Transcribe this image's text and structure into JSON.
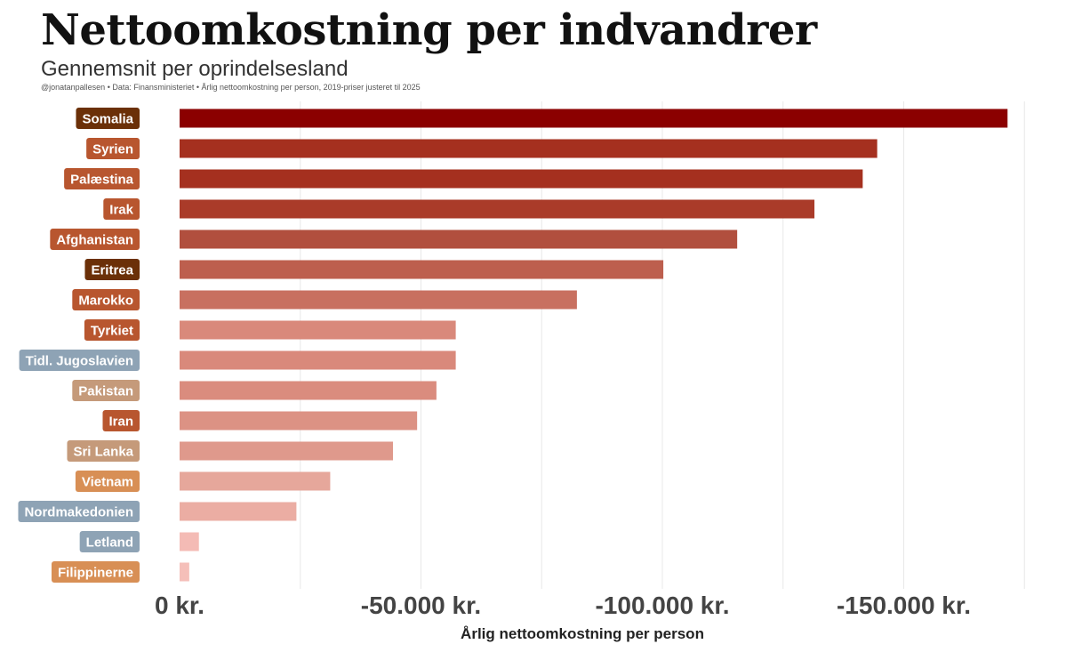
{
  "title": "Nettoomkostning per indvandrer",
  "subtitle": "Gennemsnit per oprindelsesland",
  "caption": "@jonatanpallesen • Data: Finansministeriet • Årlig nettoomkostning per person, 2019-priser justeret til 2025",
  "chart_data": {
    "type": "bar",
    "orientation": "horizontal",
    "xlabel": "Årlig nettoomkostning per person",
    "x_axis_reversed": true,
    "xlim": [
      0,
      -175000
    ],
    "xticks": [
      0,
      -50000,
      -100000,
      -150000
    ],
    "xtick_labels": [
      "0 kr.",
      "-50.000 kr.",
      "-100.000 kr.",
      "-150.000 kr."
    ],
    "grid": true,
    "categories": [
      "Somalia",
      "Syrien",
      "Palæstina",
      "Irak",
      "Afghanistan",
      "Eritrea",
      "Marokko",
      "Tyrkiet",
      "Tidl. Jugoslavien",
      "Pakistan",
      "Iran",
      "Sri Lanka",
      "Vietnam",
      "Nordmakedonien",
      "Letland",
      "Filippinerne"
    ],
    "values": [
      -171500,
      -144500,
      -141500,
      -131500,
      -115500,
      -100200,
      -82300,
      -57200,
      -57200,
      -53200,
      -49200,
      -44200,
      -31200,
      -24200,
      -4000,
      -2000
    ],
    "bar_colors": [
      "#8b0000",
      "#a5301f",
      "#a5301f",
      "#aa3b29",
      "#b14f3e",
      "#bd5f4e",
      "#c87060",
      "#d9897b",
      "#d9897b",
      "#da8c7e",
      "#dc9284",
      "#df998c",
      "#e6a79b",
      "#ebada3",
      "#f4bbb5",
      "#f5bfb9"
    ],
    "label_colors": [
      "#6b3008",
      "#b8562f",
      "#b8562f",
      "#b8562f",
      "#b8562f",
      "#6b3008",
      "#b8562f",
      "#b8562f",
      "#8ea3b5",
      "#c59a7a",
      "#b8562f",
      "#c59a7a",
      "#d88f55",
      "#8ea3b5",
      "#8ea3b5",
      "#d88f55"
    ]
  }
}
